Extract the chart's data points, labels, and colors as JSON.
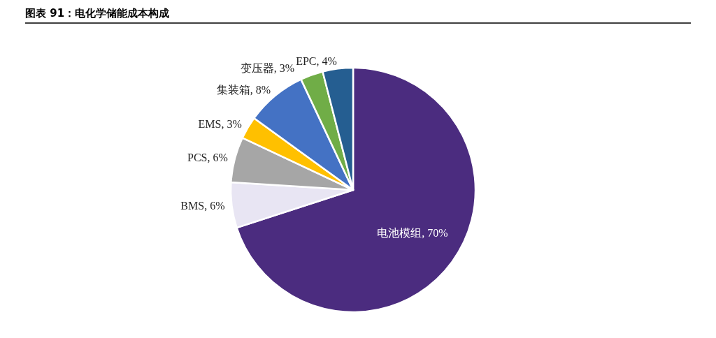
{
  "chart_data": {
    "type": "pie",
    "title": "图表 91：电化学储能成本构成",
    "categories": [
      "电池模组",
      "BMS",
      "PCS",
      "EMS",
      "集装箱",
      "变压器",
      "EPC"
    ],
    "values": [
      70,
      6,
      6,
      3,
      8,
      3,
      4
    ],
    "colors": [
      "#4b2c7f",
      "#e8e5f3",
      "#a6a6a6",
      "#ffc000",
      "#4472c4",
      "#70ad47",
      "#255e91"
    ],
    "value_labels": [
      ", 70%",
      ", 6%",
      ", 6%",
      ", 3%",
      ", 8%",
      ", 3%",
      ", 4%"
    ]
  }
}
